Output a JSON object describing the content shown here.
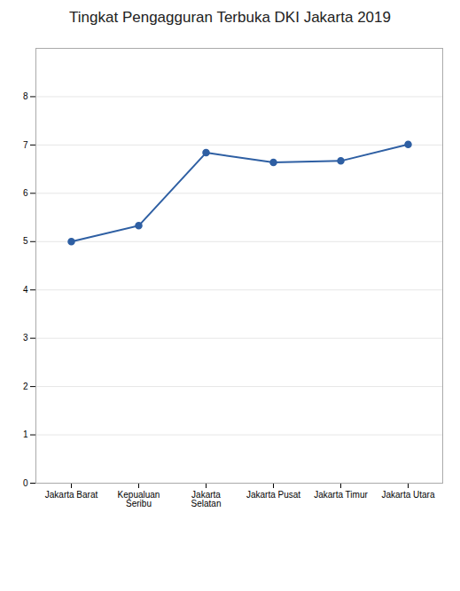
{
  "chart_data": {
    "type": "line",
    "title": "Tingkat Pengagguran Terbuka DKI Jakarta 2019",
    "categories": [
      "Jakarta Barat",
      "Kepualuan\nSeribu",
      "Jakarta\nSelatan",
      "Jakarta Pusat",
      "Jakarta Timur",
      "Jakarta Utara"
    ],
    "values": [
      5.0,
      5.33,
      6.84,
      6.64,
      6.67,
      7.01
    ],
    "color": "#2E5FA3",
    "marker": "circle",
    "ylim": [
      0,
      9
    ],
    "yticks": [
      0,
      1,
      2,
      3,
      4,
      5,
      6,
      7,
      8
    ],
    "grid": true
  }
}
